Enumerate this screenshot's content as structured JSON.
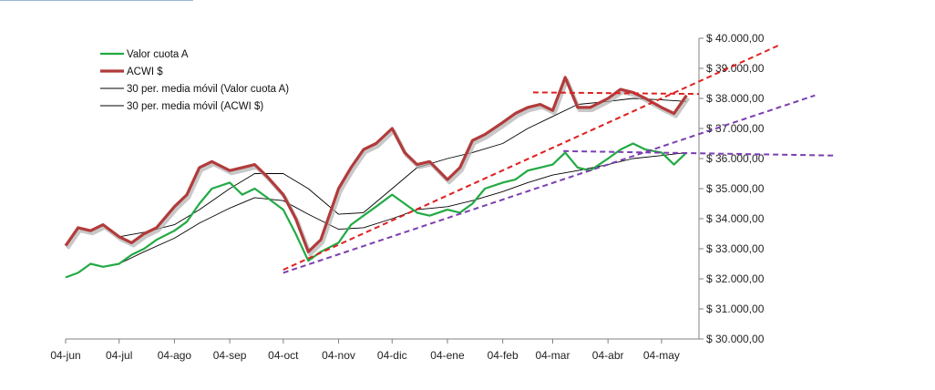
{
  "chart_data": {
    "type": "line",
    "title": "",
    "xlabel": "",
    "ylabel": "",
    "x_ticks": [
      "04-jun",
      "04-jul",
      "04-ago",
      "04-sep",
      "04-oct",
      "04-nov",
      "04-dic",
      "04-ene",
      "04-feb",
      "04-mar",
      "04-abr",
      "04-may"
    ],
    "y_ticks": [
      "$ 30.000,00",
      "$ 31.000,00",
      "$ 32.000,00",
      "$ 33.000,00",
      "$ 34.000,00",
      "$ 35.000,00",
      "$ 36.000,00",
      "$ 37.000,00",
      "$ 38.000,00",
      "$ 39.000,00",
      "$ 40.000,00"
    ],
    "ylim": [
      30000,
      40000
    ],
    "xlim": [
      "04-jun",
      "25-may"
    ],
    "y_axis_position": "right",
    "grid": false,
    "legend_position": "top-left",
    "legend": [
      {
        "label": "Valor cuota A",
        "color": "#22aa44"
      },
      {
        "label": "ACWI $",
        "color": "#b23b3b"
      },
      {
        "label": "30 per. media móvil (Valor cuota A)",
        "color": "#000000"
      },
      {
        "label": "30 per. media móvil (ACWI $)",
        "color": "#000000"
      }
    ],
    "series": [
      {
        "name": "Valor cuota A",
        "color": "#22aa44",
        "points": [
          [
            "04-jun",
            32050
          ],
          [
            "11-jun",
            32200
          ],
          [
            "18-jun",
            32500
          ],
          [
            "25-jun",
            32400
          ],
          [
            "04-jul",
            32500
          ],
          [
            "11-jul",
            32800
          ],
          [
            "18-jul",
            33000
          ],
          [
            "25-jul",
            33300
          ],
          [
            "04-ago",
            33600
          ],
          [
            "11-ago",
            33900
          ],
          [
            "18-ago",
            34500
          ],
          [
            "25-ago",
            35000
          ],
          [
            "04-sep",
            35200
          ],
          [
            "11-sep",
            34800
          ],
          [
            "18-sep",
            35000
          ],
          [
            "25-sep",
            34700
          ],
          [
            "04-oct",
            34300
          ],
          [
            "11-oct",
            33500
          ],
          [
            "18-oct",
            32600
          ],
          [
            "25-oct",
            32900
          ],
          [
            "04-nov",
            33200
          ],
          [
            "11-nov",
            33800
          ],
          [
            "18-nov",
            34100
          ],
          [
            "25-nov",
            34400
          ],
          [
            "04-dic",
            34800
          ],
          [
            "11-dic",
            34500
          ],
          [
            "18-dic",
            34200
          ],
          [
            "25-dic",
            34100
          ],
          [
            "04-ene",
            34300
          ],
          [
            "11-ene",
            34200
          ],
          [
            "18-ene",
            34500
          ],
          [
            "25-ene",
            35000
          ],
          [
            "04-feb",
            35200
          ],
          [
            "11-feb",
            35300
          ],
          [
            "18-feb",
            35600
          ],
          [
            "25-feb",
            35700
          ],
          [
            "04-mar",
            35800
          ],
          [
            "11-mar",
            36200
          ],
          [
            "18-mar",
            35700
          ],
          [
            "25-mar",
            35600
          ],
          [
            "04-abr",
            36000
          ],
          [
            "11-abr",
            36300
          ],
          [
            "18-abr",
            36500
          ],
          [
            "25-abr",
            36300
          ],
          [
            "04-may",
            36200
          ],
          [
            "11-may",
            35800
          ],
          [
            "18-may",
            36200
          ]
        ]
      },
      {
        "name": "ACWI $",
        "color": "#b23b3b",
        "points": [
          [
            "04-jun",
            33100
          ],
          [
            "11-jun",
            33700
          ],
          [
            "18-jun",
            33600
          ],
          [
            "25-jun",
            33800
          ],
          [
            "04-jul",
            33400
          ],
          [
            "11-jul",
            33200
          ],
          [
            "18-jul",
            33500
          ],
          [
            "25-jul",
            33700
          ],
          [
            "04-ago",
            34400
          ],
          [
            "11-ago",
            34800
          ],
          [
            "18-ago",
            35700
          ],
          [
            "25-ago",
            35900
          ],
          [
            "04-sep",
            35600
          ],
          [
            "11-sep",
            35700
          ],
          [
            "18-sep",
            35800
          ],
          [
            "25-sep",
            35400
          ],
          [
            "04-oct",
            34800
          ],
          [
            "11-oct",
            34000
          ],
          [
            "18-oct",
            32900
          ],
          [
            "25-oct",
            33300
          ],
          [
            "04-nov",
            35000
          ],
          [
            "11-nov",
            35700
          ],
          [
            "18-nov",
            36300
          ],
          [
            "25-nov",
            36500
          ],
          [
            "04-dic",
            37000
          ],
          [
            "11-dic",
            36200
          ],
          [
            "18-dic",
            35800
          ],
          [
            "25-dic",
            35900
          ],
          [
            "04-ene",
            35300
          ],
          [
            "11-ene",
            35700
          ],
          [
            "18-ene",
            36600
          ],
          [
            "25-ene",
            36800
          ],
          [
            "04-feb",
            37200
          ],
          [
            "11-feb",
            37500
          ],
          [
            "18-feb",
            37700
          ],
          [
            "25-feb",
            37800
          ],
          [
            "04-mar",
            37600
          ],
          [
            "11-mar",
            38700
          ],
          [
            "18-mar",
            37700
          ],
          [
            "25-mar",
            37700
          ],
          [
            "04-abr",
            38000
          ],
          [
            "11-abr",
            38300
          ],
          [
            "18-abr",
            38200
          ],
          [
            "25-abr",
            38000
          ],
          [
            "04-may",
            37700
          ],
          [
            "11-may",
            37500
          ],
          [
            "18-may",
            38100
          ]
        ]
      },
      {
        "name": "30 per. media móvil (Valor cuota A)",
        "color": "#000000",
        "points": [
          [
            "04-jul",
            32500
          ],
          [
            "18-jul",
            32900
          ],
          [
            "04-ago",
            33350
          ],
          [
            "18-ago",
            33850
          ],
          [
            "04-sep",
            34350
          ],
          [
            "18-sep",
            34700
          ],
          [
            "04-oct",
            34600
          ],
          [
            "18-oct",
            34150
          ],
          [
            "04-nov",
            33650
          ],
          [
            "18-nov",
            33700
          ],
          [
            "04-dic",
            34000
          ],
          [
            "18-dic",
            34300
          ],
          [
            "04-ene",
            34400
          ],
          [
            "18-ene",
            34600
          ],
          [
            "04-feb",
            34900
          ],
          [
            "18-feb",
            35200
          ],
          [
            "04-mar",
            35450
          ],
          [
            "18-mar",
            35600
          ],
          [
            "04-abr",
            35800
          ],
          [
            "18-abr",
            36000
          ],
          [
            "04-may",
            36100
          ],
          [
            "18-may",
            36200
          ]
        ]
      },
      {
        "name": "30 per. media móvil (ACWI $)",
        "color": "#000000",
        "points": [
          [
            "04-jul",
            33400
          ],
          [
            "18-jul",
            33550
          ],
          [
            "04-ago",
            33800
          ],
          [
            "18-ago",
            34300
          ],
          [
            "04-sep",
            35000
          ],
          [
            "18-sep",
            35500
          ],
          [
            "04-oct",
            35500
          ],
          [
            "18-oct",
            35000
          ],
          [
            "04-nov",
            34150
          ],
          [
            "18-nov",
            34200
          ],
          [
            "04-dic",
            35000
          ],
          [
            "18-dic",
            35700
          ],
          [
            "04-ene",
            36000
          ],
          [
            "18-ene",
            36200
          ],
          [
            "04-feb",
            36500
          ],
          [
            "18-feb",
            37000
          ],
          [
            "04-mar",
            37400
          ],
          [
            "18-mar",
            37800
          ],
          [
            "04-abr",
            37900
          ],
          [
            "18-abr",
            38000
          ],
          [
            "04-may",
            37950
          ],
          [
            "18-may",
            37900
          ]
        ]
      }
    ],
    "annotations": [
      {
        "type": "trendline",
        "color": "#e02020",
        "dash": true,
        "from": [
          "04-oct",
          32300
        ],
        "to": [
          "10-jul",
          39800
        ]
      },
      {
        "type": "trendline",
        "color": "#e02020",
        "dash": true,
        "from": [
          "21-feb",
          38200
        ],
        "to": [
          "25-may",
          38150
        ]
      },
      {
        "type": "trendline",
        "color": "#7a3fb0",
        "dash": true,
        "from": [
          "04-oct",
          32200
        ],
        "to": [
          "29-jul",
          38100
        ]
      },
      {
        "type": "trendline",
        "color": "#7a3fb0",
        "dash": true,
        "from": [
          "10-mar",
          36250
        ],
        "to": [
          "09-ago",
          36100
        ]
      }
    ]
  }
}
